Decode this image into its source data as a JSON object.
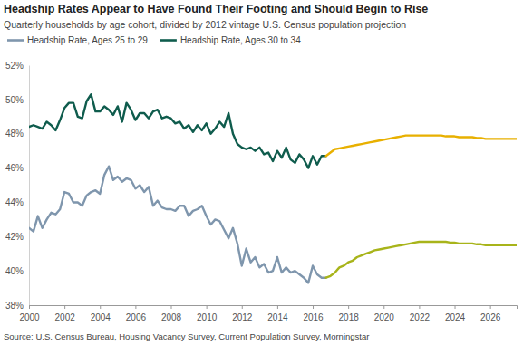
{
  "chart_data": {
    "type": "line",
    "title": "Headship Rates Appear to Have Found Their Footing and Should Begin to Rise",
    "subtitle": "Quarterly households by age cohort, divided by 2012 vintage U.S. Census population projection",
    "source": "Source: U.S. Census Bureau, Housing Vacancy Survey, Current Population Survey, Morningstar",
    "legend": "top-left",
    "grid": false,
    "x": [
      2000,
      2000.25,
      2000.5,
      2000.75,
      2001,
      2001.25,
      2001.5,
      2001.75,
      2002,
      2002.25,
      2002.5,
      2002.75,
      2003,
      2003.25,
      2003.5,
      2003.75,
      2004,
      2004.25,
      2004.5,
      2004.75,
      2005,
      2005.25,
      2005.5,
      2005.75,
      2006,
      2006.25,
      2006.5,
      2006.75,
      2007,
      2007.25,
      2007.5,
      2007.75,
      2008,
      2008.25,
      2008.5,
      2008.75,
      2009,
      2009.25,
      2009.5,
      2009.75,
      2010,
      2010.25,
      2010.5,
      2010.75,
      2011,
      2011.25,
      2011.5,
      2011.75,
      2012,
      2012.25,
      2012.5,
      2012.75,
      2013,
      2013.25,
      2013.5,
      2013.75,
      2014,
      2014.25,
      2014.5,
      2014.75,
      2015,
      2015.25,
      2015.5,
      2015.75,
      2016,
      2016.25,
      2016.5,
      2016.75,
      2017,
      2017.25,
      2017.5,
      2017.75,
      2018,
      2018.25,
      2018.5,
      2018.75,
      2019,
      2019.25,
      2019.5,
      2019.75,
      2020,
      2020.25,
      2020.5,
      2020.75,
      2021,
      2021.25,
      2021.5,
      2021.75,
      2022,
      2022.25,
      2022.5,
      2022.75,
      2023,
      2023.25,
      2023.5,
      2023.75,
      2024,
      2024.25,
      2024.5,
      2024.75,
      2025,
      2025.25,
      2025.5,
      2025.75,
      2026,
      2026.25,
      2026.5,
      2026.75,
      2027,
      2027.25,
      2027.5
    ],
    "xlim": [
      2000,
      2027.5
    ],
    "xticks": [
      2000,
      2002,
      2004,
      2006,
      2008,
      2010,
      2012,
      2014,
      2016,
      2018,
      2020,
      2022,
      2024,
      2026
    ],
    "ylim": [
      38,
      52
    ],
    "yticks": [
      {
        "value": 38,
        "label": "38%"
      },
      {
        "value": 40,
        "label": "40%"
      },
      {
        "value": 42,
        "label": "42%"
      },
      {
        "value": 44,
        "label": "44%"
      },
      {
        "value": 46,
        "label": "46%"
      },
      {
        "value": 48,
        "label": "48%"
      },
      {
        "value": 50,
        "label": "50%"
      },
      {
        "value": 52,
        "label": "52%"
      }
    ],
    "series": [
      {
        "name": "Headship Rate, Ages 25 to 29",
        "color": "#7f96ad",
        "values": [
          42.5,
          42.3,
          43.2,
          42.5,
          43.0,
          43.4,
          43.3,
          43.6,
          44.6,
          44.5,
          44.0,
          44.0,
          43.8,
          44.4,
          44.6,
          44.7,
          44.5,
          45.6,
          46.1,
          45.3,
          45.5,
          45.2,
          45.4,
          45.3,
          44.8,
          45.0,
          44.6,
          44.9,
          43.8,
          44.1,
          43.7,
          43.6,
          43.6,
          43.5,
          43.8,
          43.8,
          43.2,
          43.5,
          43.6,
          43.8,
          43.2,
          42.7,
          43.0,
          42.9,
          42.4,
          41.9,
          42.5,
          41.6,
          40.3,
          41.3,
          40.5,
          40.8,
          40.2,
          40.4,
          39.9,
          40.0,
          40.8,
          39.9,
          40.2,
          39.9,
          40.0,
          39.8,
          39.6,
          39.3,
          40.3,
          39.8,
          39.6,
          39.6,
          null,
          null,
          null,
          null,
          null,
          null,
          null,
          null,
          null,
          null,
          null,
          null,
          null,
          null,
          null,
          null,
          null,
          null,
          null,
          null,
          null,
          null,
          null,
          null,
          null,
          null,
          null,
          null,
          null,
          null,
          null,
          null,
          null,
          null,
          null,
          null,
          null,
          null,
          null,
          null,
          null,
          null,
          null
        ]
      },
      {
        "name": "Headship Rate, Ages 30 to 34",
        "color": "#0f5c4d",
        "values": [
          48.4,
          48.5,
          48.4,
          48.3,
          48.7,
          48.5,
          48.2,
          48.8,
          49.5,
          49.8,
          49.8,
          49.0,
          48.9,
          49.9,
          50.3,
          49.3,
          49.3,
          49.6,
          49.4,
          49.1,
          49.6,
          48.7,
          49.8,
          49.4,
          48.8,
          49.2,
          49.2,
          48.9,
          49.3,
          49.4,
          48.9,
          49.0,
          48.9,
          48.6,
          48.7,
          48.3,
          48.5,
          48.1,
          48.5,
          48.2,
          48.6,
          48.0,
          48.3,
          48.7,
          48.4,
          49.2,
          48.0,
          47.4,
          47.2,
          47.1,
          47.2,
          47.0,
          47.2,
          46.8,
          46.9,
          46.4,
          47.0,
          46.6,
          47.2,
          46.5,
          46.3,
          46.8,
          46.5,
          46.0,
          46.7,
          46.2,
          46.7,
          46.7,
          null,
          null,
          null,
          null,
          null,
          null,
          null,
          null,
          null,
          null,
          null,
          null,
          null,
          null,
          null,
          null,
          null,
          null,
          null,
          null,
          null,
          null,
          null,
          null,
          null,
          null,
          null,
          null,
          null,
          null,
          null,
          null,
          null,
          null,
          null,
          null,
          null,
          null,
          null,
          null,
          null,
          null,
          null
        ]
      },
      {
        "color": "#a8b41a",
        "values": [
          null,
          null,
          null,
          null,
          null,
          null,
          null,
          null,
          null,
          null,
          null,
          null,
          null,
          null,
          null,
          null,
          null,
          null,
          null,
          null,
          null,
          null,
          null,
          null,
          null,
          null,
          null,
          null,
          null,
          null,
          null,
          null,
          null,
          null,
          null,
          null,
          null,
          null,
          null,
          null,
          null,
          null,
          null,
          null,
          null,
          null,
          null,
          null,
          null,
          null,
          null,
          null,
          null,
          null,
          null,
          null,
          null,
          null,
          null,
          null,
          null,
          null,
          null,
          null,
          null,
          null,
          null,
          39.6,
          39.7,
          39.9,
          40.2,
          40.3,
          40.5,
          40.6,
          40.8,
          40.9,
          41.0,
          41.1,
          41.2,
          41.25,
          41.3,
          41.35,
          41.4,
          41.45,
          41.5,
          41.55,
          41.6,
          41.65,
          41.7,
          41.7,
          41.7,
          41.7,
          41.7,
          41.7,
          41.7,
          41.65,
          41.65,
          41.6,
          41.6,
          41.6,
          41.6,
          41.55,
          41.55,
          41.5,
          41.5,
          41.5,
          41.5,
          41.5,
          41.5,
          41.5,
          41.5
        ]
      },
      {
        "color": "#e8b000",
        "values": [
          null,
          null,
          null,
          null,
          null,
          null,
          null,
          null,
          null,
          null,
          null,
          null,
          null,
          null,
          null,
          null,
          null,
          null,
          null,
          null,
          null,
          null,
          null,
          null,
          null,
          null,
          null,
          null,
          null,
          null,
          null,
          null,
          null,
          null,
          null,
          null,
          null,
          null,
          null,
          null,
          null,
          null,
          null,
          null,
          null,
          null,
          null,
          null,
          null,
          null,
          null,
          null,
          null,
          null,
          null,
          null,
          null,
          null,
          null,
          null,
          null,
          null,
          null,
          null,
          null,
          null,
          null,
          46.7,
          46.9,
          47.1,
          47.15,
          47.2,
          47.25,
          47.3,
          47.35,
          47.4,
          47.45,
          47.5,
          47.55,
          47.6,
          47.65,
          47.7,
          47.75,
          47.8,
          47.85,
          47.9,
          47.9,
          47.9,
          47.9,
          47.9,
          47.9,
          47.9,
          47.9,
          47.9,
          47.85,
          47.85,
          47.85,
          47.8,
          47.8,
          47.8,
          47.8,
          47.75,
          47.75,
          47.7,
          47.7,
          47.7,
          47.7,
          47.7,
          47.7,
          47.7,
          47.7
        ]
      }
    ]
  }
}
